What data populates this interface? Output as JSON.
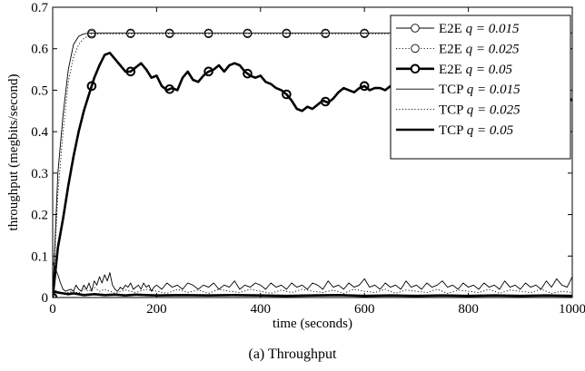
{
  "caption": "(a) Throughput",
  "chart_data": {
    "type": "line",
    "title": "",
    "xlabel": "time (seconds)",
    "ylabel": "throughput (megbits/second)",
    "xlim": [
      0,
      1000
    ],
    "ylim": [
      0,
      0.7
    ],
    "xticks": [
      0,
      200,
      400,
      600,
      800,
      1000
    ],
    "xtick_labels": [
      "0",
      "200",
      "400",
      "600",
      "800",
      "1000"
    ],
    "yticks": [
      0,
      0.1,
      0.2,
      0.3,
      0.4,
      0.5,
      0.6,
      0.7
    ],
    "ytick_labels": [
      "0",
      "0.1",
      "0.2",
      "0.3",
      "0.4",
      "0.5",
      "0.6",
      "0.7"
    ],
    "grid": false,
    "legend_position": "top-right",
    "series": [
      {
        "name": "E2E q = 0.015",
        "label_prefix": "E2E",
        "label_q": "q = 0.015",
        "line": "solid",
        "weight": "thin",
        "marker": "circle",
        "x": [
          0,
          10,
          20,
          30,
          40,
          50,
          60,
          75,
          100,
          150,
          200,
          300,
          400,
          500,
          600,
          700,
          800,
          900,
          1000
        ],
        "y": [
          0,
          0.3,
          0.44,
          0.55,
          0.61,
          0.63,
          0.636,
          0.638,
          0.638,
          0.638,
          0.638,
          0.638,
          0.638,
          0.638,
          0.638,
          0.638,
          0.638,
          0.638,
          0.638
        ],
        "marker_x": [
          75,
          150,
          225,
          300,
          375,
          450,
          525,
          600,
          675,
          750,
          825,
          900,
          975
        ]
      },
      {
        "name": "E2E q = 0.025",
        "label_prefix": "E2E",
        "label_q": "q = 0.025",
        "line": "dotted",
        "weight": "thin",
        "marker": "circle",
        "x": [
          0,
          10,
          20,
          30,
          40,
          50,
          60,
          75,
          100,
          150,
          200,
          300,
          400,
          500,
          600,
          700,
          800,
          900,
          1000
        ],
        "y": [
          0,
          0.25,
          0.4,
          0.52,
          0.58,
          0.61,
          0.625,
          0.635,
          0.636,
          0.636,
          0.636,
          0.636,
          0.636,
          0.636,
          0.636,
          0.636,
          0.636,
          0.636,
          0.636
        ],
        "marker_x": [
          75,
          150,
          225,
          300,
          375,
          450,
          525,
          600,
          675,
          750,
          825,
          900,
          975
        ]
      },
      {
        "name": "E2E q = 0.05",
        "label_prefix": "E2E",
        "label_q": "q = 0.05",
        "line": "solid",
        "weight": "thick",
        "marker": "circle",
        "x": [
          0,
          10,
          20,
          30,
          40,
          50,
          60,
          70,
          80,
          90,
          100,
          110,
          120,
          130,
          140,
          150,
          160,
          170,
          180,
          190,
          200,
          210,
          220,
          230,
          240,
          250,
          260,
          270,
          280,
          290,
          300,
          310,
          320,
          330,
          340,
          350,
          360,
          370,
          380,
          390,
          400,
          410,
          420,
          430,
          440,
          450,
          460,
          470,
          480,
          490,
          500,
          510,
          520,
          530,
          540,
          550,
          560,
          570,
          580,
          590,
          600,
          610,
          620,
          630,
          640,
          650,
          660,
          670,
          680,
          690,
          700,
          720,
          740,
          760,
          780,
          800,
          820,
          840,
          860,
          880,
          900,
          920,
          940,
          960,
          980,
          1000
        ],
        "y": [
          0,
          0.12,
          0.19,
          0.27,
          0.34,
          0.4,
          0.45,
          0.49,
          0.53,
          0.56,
          0.585,
          0.59,
          0.575,
          0.56,
          0.545,
          0.545,
          0.555,
          0.565,
          0.55,
          0.53,
          0.535,
          0.51,
          0.5,
          0.505,
          0.5,
          0.53,
          0.545,
          0.525,
          0.52,
          0.535,
          0.545,
          0.55,
          0.56,
          0.545,
          0.56,
          0.565,
          0.56,
          0.545,
          0.535,
          0.53,
          0.535,
          0.52,
          0.515,
          0.505,
          0.5,
          0.49,
          0.475,
          0.455,
          0.45,
          0.46,
          0.455,
          0.465,
          0.475,
          0.47,
          0.48,
          0.495,
          0.505,
          0.5,
          0.495,
          0.505,
          0.51,
          0.5,
          0.505,
          0.505,
          0.5,
          0.51,
          0.5,
          0.515,
          0.5,
          0.49,
          0.505,
          0.495,
          0.51,
          0.5,
          0.49,
          0.505,
          0.49,
          0.5,
          0.495,
          0.49,
          0.5,
          0.485,
          0.495,
          0.49,
          0.495,
          0.475
        ],
        "marker_x": [
          0,
          75,
          150,
          225,
          300,
          375,
          450,
          525,
          600
        ]
      },
      {
        "name": "TCP q = 0.015",
        "label_prefix": "TCP",
        "label_q": "q = 0.015",
        "line": "solid",
        "weight": "thin",
        "marker": "none",
        "x": [
          0,
          5,
          10,
          15,
          20,
          25,
          30,
          35,
          40,
          45,
          50,
          55,
          60,
          65,
          70,
          75,
          80,
          85,
          90,
          95,
          100,
          105,
          110,
          115,
          120,
          125,
          130,
          135,
          140,
          145,
          150,
          155,
          160,
          165,
          170,
          175,
          180,
          185,
          190,
          195,
          200,
          210,
          220,
          230,
          240,
          250,
          260,
          270,
          280,
          290,
          300,
          310,
          320,
          330,
          340,
          350,
          360,
          370,
          380,
          390,
          400,
          410,
          420,
          430,
          440,
          450,
          460,
          470,
          480,
          490,
          500,
          510,
          520,
          530,
          540,
          550,
          560,
          570,
          580,
          590,
          600,
          610,
          620,
          630,
          640,
          650,
          660,
          670,
          680,
          690,
          700,
          710,
          720,
          730,
          740,
          750,
          760,
          770,
          780,
          790,
          800,
          810,
          820,
          830,
          840,
          850,
          860,
          870,
          880,
          890,
          900,
          910,
          920,
          930,
          940,
          950,
          960,
          970,
          980,
          990,
          1000
        ],
        "y": [
          0.085,
          0.07,
          0.055,
          0.035,
          0.02,
          0.015,
          0.018,
          0.02,
          0.015,
          0.03,
          0.02,
          0.015,
          0.03,
          0.02,
          0.035,
          0.015,
          0.04,
          0.03,
          0.05,
          0.035,
          0.055,
          0.04,
          0.06,
          0.03,
          0.02,
          0.015,
          0.025,
          0.02,
          0.03,
          0.025,
          0.035,
          0.02,
          0.025,
          0.03,
          0.02,
          0.035,
          0.025,
          0.03,
          0.015,
          0.025,
          0.03,
          0.02,
          0.035,
          0.025,
          0.03,
          0.02,
          0.035,
          0.03,
          0.02,
          0.03,
          0.025,
          0.035,
          0.02,
          0.03,
          0.025,
          0.04,
          0.02,
          0.03,
          0.025,
          0.035,
          0.03,
          0.02,
          0.035,
          0.025,
          0.03,
          0.02,
          0.035,
          0.025,
          0.03,
          0.02,
          0.035,
          0.03,
          0.02,
          0.04,
          0.025,
          0.03,
          0.02,
          0.035,
          0.025,
          0.03,
          0.045,
          0.025,
          0.03,
          0.02,
          0.035,
          0.025,
          0.03,
          0.02,
          0.04,
          0.025,
          0.03,
          0.02,
          0.035,
          0.025,
          0.03,
          0.04,
          0.025,
          0.03,
          0.02,
          0.035,
          0.025,
          0.03,
          0.02,
          0.035,
          0.025,
          0.03,
          0.02,
          0.04,
          0.025,
          0.03,
          0.02,
          0.035,
          0.025,
          0.03,
          0.02,
          0.04,
          0.025,
          0.045,
          0.03,
          0.025,
          0.05
        ]
      },
      {
        "name": "TCP q = 0.025",
        "label_prefix": "TCP",
        "label_q": "q = 0.025",
        "line": "dotted",
        "weight": "thin",
        "marker": "none",
        "x": [
          0,
          10,
          20,
          30,
          40,
          50,
          60,
          70,
          80,
          90,
          100,
          120,
          140,
          160,
          180,
          200,
          220,
          240,
          260,
          280,
          300,
          320,
          340,
          360,
          380,
          400,
          420,
          440,
          460,
          480,
          500,
          520,
          540,
          560,
          580,
          600,
          620,
          640,
          660,
          680,
          700,
          720,
          740,
          760,
          780,
          800,
          820,
          840,
          860,
          880,
          900,
          920,
          940,
          960,
          980,
          1000
        ],
        "y": [
          0.02,
          0.015,
          0.01,
          0.012,
          0.015,
          0.01,
          0.02,
          0.015,
          0.025,
          0.015,
          0.02,
          0.01,
          0.018,
          0.012,
          0.02,
          0.015,
          0.01,
          0.02,
          0.012,
          0.018,
          0.01,
          0.02,
          0.015,
          0.012,
          0.02,
          0.015,
          0.01,
          0.018,
          0.012,
          0.02,
          0.015,
          0.012,
          0.018,
          0.01,
          0.02,
          0.015,
          0.012,
          0.02,
          0.01,
          0.018,
          0.015,
          0.012,
          0.02,
          0.01,
          0.018,
          0.015,
          0.012,
          0.02,
          0.01,
          0.018,
          0.015,
          0.012,
          0.02,
          0.01,
          0.015,
          0.012
        ]
      },
      {
        "name": "TCP q = 0.05",
        "label_prefix": "TCP",
        "label_q": "q = 0.05",
        "line": "solid",
        "weight": "thick",
        "marker": "none",
        "x": [
          0,
          10,
          20,
          30,
          40,
          50,
          60,
          80,
          100,
          120,
          140,
          160,
          180,
          200,
          250,
          300,
          350,
          400,
          450,
          500,
          550,
          600,
          650,
          700,
          750,
          800,
          850,
          900,
          950,
          1000
        ],
        "y": [
          0.015,
          0.012,
          0.01,
          0.008,
          0.01,
          0.008,
          0.006,
          0.008,
          0.006,
          0.007,
          0.005,
          0.007,
          0.006,
          0.005,
          0.006,
          0.005,
          0.006,
          0.005,
          0.004,
          0.005,
          0.006,
          0.004,
          0.005,
          0.004,
          0.005,
          0.004,
          0.005,
          0.004,
          0.005,
          0.004
        ]
      }
    ]
  }
}
